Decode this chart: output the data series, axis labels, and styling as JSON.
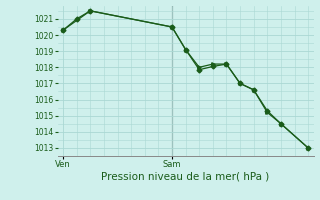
{
  "bg_color": "#cff0ec",
  "grid_color": "#aad8d3",
  "line_color": "#1a5c1a",
  "marker_color": "#1a5c1a",
  "xlabel": "Pression niveau de la mer( hPa )",
  "xlabel_fontsize": 7.5,
  "ylim": [
    1012.5,
    1021.8
  ],
  "yticks": [
    1013,
    1014,
    1015,
    1016,
    1017,
    1018,
    1019,
    1020,
    1021
  ],
  "xtick_labels": [
    "Ven",
    "Sam"
  ],
  "xtick_positions": [
    0.5,
    4.5
  ],
  "vline_x": 4.5,
  "series1_x": [
    0.5,
    1.0,
    1.5,
    4.5,
    5.0,
    5.5,
    6.0,
    6.5,
    7.0,
    7.5,
    8.0,
    8.5,
    9.5
  ],
  "series1_y": [
    1020.3,
    1021.0,
    1021.5,
    1020.5,
    1019.1,
    1017.85,
    1018.05,
    1018.2,
    1017.0,
    1016.6,
    1015.3,
    1014.5,
    1013.0
  ],
  "series2_x": [
    0.5,
    1.5,
    4.5,
    5.0,
    5.5,
    6.0,
    6.5,
    7.0,
    7.5,
    8.0,
    8.5,
    9.5
  ],
  "series2_y": [
    1020.3,
    1021.5,
    1020.5,
    1019.1,
    1018.0,
    1018.2,
    1018.2,
    1017.0,
    1016.6,
    1015.2,
    1014.5,
    1013.0
  ],
  "xlim": [
    0.3,
    9.7
  ]
}
